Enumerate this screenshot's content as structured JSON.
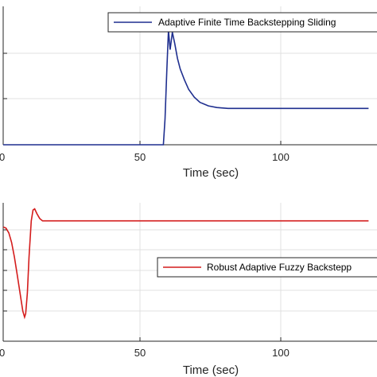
{
  "chart_data": [
    {
      "type": "line",
      "xlabel": "Time (sec)",
      "ylabel": "",
      "title": "",
      "xlim": [
        0,
        130
      ],
      "ylim": [
        0,
        3.2
      ],
      "xticks": [
        0,
        50,
        100
      ],
      "xtick_labels": [
        "0",
        "50",
        "100"
      ],
      "yticks": [
        0,
        1,
        2,
        3
      ],
      "grid": true,
      "legend_position": "top-right",
      "series": [
        {
          "name": "Adaptive Finite Time Backstepping Sliding",
          "color": "#1f2f8f",
          "x": [
            0,
            57,
            57.6,
            58.2,
            58.8,
            59.4,
            60.2,
            61,
            62,
            63,
            64.5,
            66,
            68,
            70,
            73,
            76,
            80,
            130
          ],
          "values": [
            0,
            0,
            0.6,
            1.7,
            2.65,
            2.2,
            2.6,
            2.35,
            2.0,
            1.75,
            1.5,
            1.28,
            1.1,
            0.98,
            0.9,
            0.86,
            0.84,
            0.84
          ]
        }
      ]
    },
    {
      "type": "line",
      "xlabel": "Time (sec)",
      "ylabel": "",
      "title": "",
      "xlim": [
        0,
        130
      ],
      "ylim": [
        -1.0,
        0.15
      ],
      "xticks": [
        0,
        50,
        100
      ],
      "xtick_labels": [
        "0",
        "50",
        "100"
      ],
      "yticks": [
        -0.8,
        -0.6,
        -0.4,
        -0.2,
        0
      ],
      "grid": true,
      "legend_position": "right",
      "series": [
        {
          "name": "Robust Adaptive Fuzzy Backstepp",
          "color": "#d41c1c",
          "x": [
            0,
            1,
            2,
            3,
            4,
            5,
            6,
            7,
            7.6,
            8,
            8.6,
            9.2,
            10,
            10.6,
            11.2,
            12,
            13,
            14,
            15,
            17,
            20,
            130
          ],
          "values": [
            -0.05,
            -0.06,
            -0.1,
            -0.18,
            -0.3,
            -0.45,
            -0.6,
            -0.75,
            -0.8,
            -0.77,
            -0.6,
            -0.3,
            0.0,
            0.09,
            0.1,
            0.06,
            0.02,
            0.0,
            0.0,
            0.0,
            0.0,
            0.0
          ]
        }
      ]
    }
  ]
}
